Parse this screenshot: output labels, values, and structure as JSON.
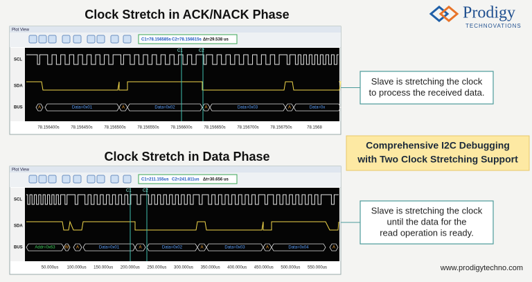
{
  "logo": {
    "name": "Prodigy",
    "tagline": "TECHNOVATIONS"
  },
  "panels": [
    {
      "title": "Clock Stretch in ACK/NACK Phase",
      "window_title": "Plot View",
      "readout": [
        "C1=78.156585s",
        "C2=78.156615s",
        "Δt=29.538 us"
      ],
      "cursors": [
        "C1",
        "C2"
      ],
      "channels": [
        "SCL",
        "SDA",
        "BUS"
      ],
      "bus_labels": [
        "A",
        "Data=0x01",
        "A",
        "Data=0x02",
        "A",
        "Data=0x03",
        "A",
        "Data=0x"
      ],
      "time_labels": [
        "78.156400s",
        "78.156450s",
        "78.156500s",
        "78.156550s",
        "78.156600s",
        "78.156650s",
        "78.156700s",
        "78.156750s",
        "78.1568"
      ],
      "callout": [
        "Slave is stretching the clock",
        "to process the received data."
      ]
    },
    {
      "title": "Clock Stretch in Data Phase",
      "window_title": "Plot View",
      "readout": [
        "C1=211.155us",
        "C2=241.811us",
        "Δt=30.656 us"
      ],
      "cursors": [
        "C1",
        "C2"
      ],
      "channels": [
        "SCL",
        "SDA",
        "BUS"
      ],
      "bus_labels": [
        "Addr=0x63",
        "W",
        "A",
        "Data=0x01",
        "A",
        "Data=0x02",
        "A",
        "Data=0x03",
        "A",
        "Data=0x04",
        "A"
      ],
      "time_labels": [
        "50.000us",
        "100.000us",
        "150.000us",
        "200.000us",
        "250.000us",
        "300.000us",
        "350.000us",
        "400.000us",
        "450.000us",
        "500.000us",
        "550.000us"
      ],
      "callout": [
        "Slave is stretching the clock",
        "until the data for the",
        "read operation is ready."
      ]
    }
  ],
  "banner": [
    "Comprehensive I2C Debugging",
    "with Two Clock Stretching Support"
  ],
  "url": "www.prodigytechno.com"
}
